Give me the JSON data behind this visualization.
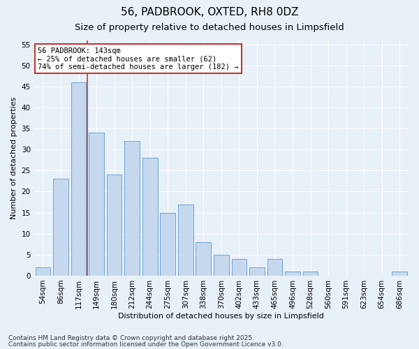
{
  "title1": "56, PADBROOK, OXTED, RH8 0DZ",
  "title2": "Size of property relative to detached houses in Limpsfield",
  "xlabel": "Distribution of detached houses by size in Limpsfield",
  "ylabel": "Number of detached properties",
  "categories": [
    "54sqm",
    "86sqm",
    "117sqm",
    "149sqm",
    "180sqm",
    "212sqm",
    "244sqm",
    "275sqm",
    "307sqm",
    "338sqm",
    "370sqm",
    "402sqm",
    "433sqm",
    "465sqm",
    "496sqm",
    "528sqm",
    "560sqm",
    "591sqm",
    "623sqm",
    "654sqm",
    "686sqm"
  ],
  "values": [
    2,
    23,
    46,
    34,
    24,
    32,
    28,
    15,
    17,
    8,
    5,
    4,
    2,
    4,
    1,
    1,
    0,
    0,
    0,
    0,
    1
  ],
  "bar_color": "#c5d8ed",
  "bar_edge_color": "#5b9bd5",
  "vline_color": "#c0392b",
  "annotation_line1": "56 PADBROOK: 143sqm",
  "annotation_line2": "← 25% of detached houses are smaller (62)",
  "annotation_line3": "74% of semi-detached houses are larger (182) →",
  "annotation_box_color": "#ffffff",
  "annotation_box_edge": "#c0392b",
  "ylim": [
    0,
    56
  ],
  "yticks": [
    0,
    5,
    10,
    15,
    20,
    25,
    30,
    35,
    40,
    45,
    50,
    55
  ],
  "footer1": "Contains HM Land Registry data © Crown copyright and database right 2025.",
  "footer2": "Contains public sector information licensed under the Open Government Licence v3.0.",
  "bg_color": "#e8f0f8",
  "title1_fontsize": 11,
  "title2_fontsize": 9.5,
  "axis_fontsize": 8,
  "tick_fontsize": 7.5,
  "annotation_fontsize": 7.5,
  "footer_fontsize": 6.5
}
